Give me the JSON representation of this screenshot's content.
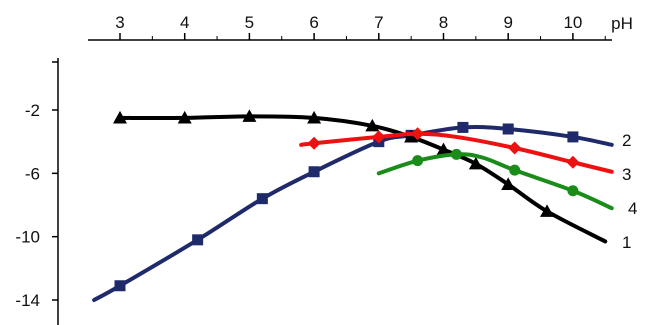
{
  "chart_data": {
    "type": "line",
    "xlabel": "pH",
    "ylabel": "",
    "xlim": [
      2.5,
      11.0
    ],
    "ylim": [
      -15,
      1.5
    ],
    "grid": false,
    "x_ticks": [
      "3",
      "4",
      "5",
      "6",
      "7",
      "8",
      "9",
      "10"
    ],
    "y_ticks": [
      -2,
      -6,
      -10,
      -14
    ],
    "y_tick_labels": [
      "-2",
      "-6",
      "-10",
      "-14"
    ],
    "series": [
      {
        "name": "1",
        "color": "#000000",
        "marker": "triangle",
        "points": [
          [
            3.0,
            -2.5
          ],
          [
            4.0,
            -2.5
          ],
          [
            5.0,
            -2.4
          ],
          [
            6.0,
            -2.5
          ],
          [
            6.9,
            -3.0
          ],
          [
            7.5,
            -3.7
          ],
          [
            8.0,
            -4.5
          ],
          [
            8.5,
            -5.4
          ],
          [
            9.0,
            -6.7
          ],
          [
            9.6,
            -8.4
          ],
          [
            10.5,
            -10.3
          ]
        ],
        "marked_x": [
          3.0,
          4.0,
          5.0,
          6.0,
          6.9,
          7.5,
          8.0,
          8.5,
          9.0,
          9.6
        ]
      },
      {
        "name": "2",
        "color": "#1f2a6b",
        "marker": "square",
        "points": [
          [
            2.6,
            -14.0
          ],
          [
            3.0,
            -13.1
          ],
          [
            4.2,
            -10.2
          ],
          [
            5.2,
            -7.6
          ],
          [
            6.0,
            -5.9
          ],
          [
            7.0,
            -4.0
          ],
          [
            7.5,
            -3.6
          ],
          [
            8.3,
            -3.1
          ],
          [
            9.0,
            -3.2
          ],
          [
            10.0,
            -3.7
          ],
          [
            10.6,
            -4.2
          ]
        ],
        "marked_x": [
          3.0,
          4.2,
          5.2,
          6.0,
          7.0,
          7.5,
          8.3,
          9.0,
          10.0
        ]
      },
      {
        "name": "3",
        "color": "#ee1111",
        "marker": "diamond",
        "points": [
          [
            5.8,
            -4.2
          ],
          [
            6.0,
            -4.1
          ],
          [
            7.0,
            -3.7
          ],
          [
            7.6,
            -3.5
          ],
          [
            8.2,
            -3.7
          ],
          [
            9.1,
            -4.4
          ],
          [
            10.0,
            -5.3
          ],
          [
            10.6,
            -5.9
          ]
        ],
        "marked_x": [
          6.0,
          7.0,
          7.6,
          9.1,
          10.0
        ]
      },
      {
        "name": "4",
        "color": "#1a8c1a",
        "marker": "circle",
        "points": [
          [
            7.0,
            -6.0
          ],
          [
            7.6,
            -5.2
          ],
          [
            8.2,
            -4.8
          ],
          [
            8.6,
            -5.0
          ],
          [
            9.1,
            -5.8
          ],
          [
            10.0,
            -7.1
          ],
          [
            10.6,
            -8.2
          ]
        ],
        "marked_x": [
          7.6,
          8.2,
          9.1,
          10.0
        ]
      }
    ]
  }
}
